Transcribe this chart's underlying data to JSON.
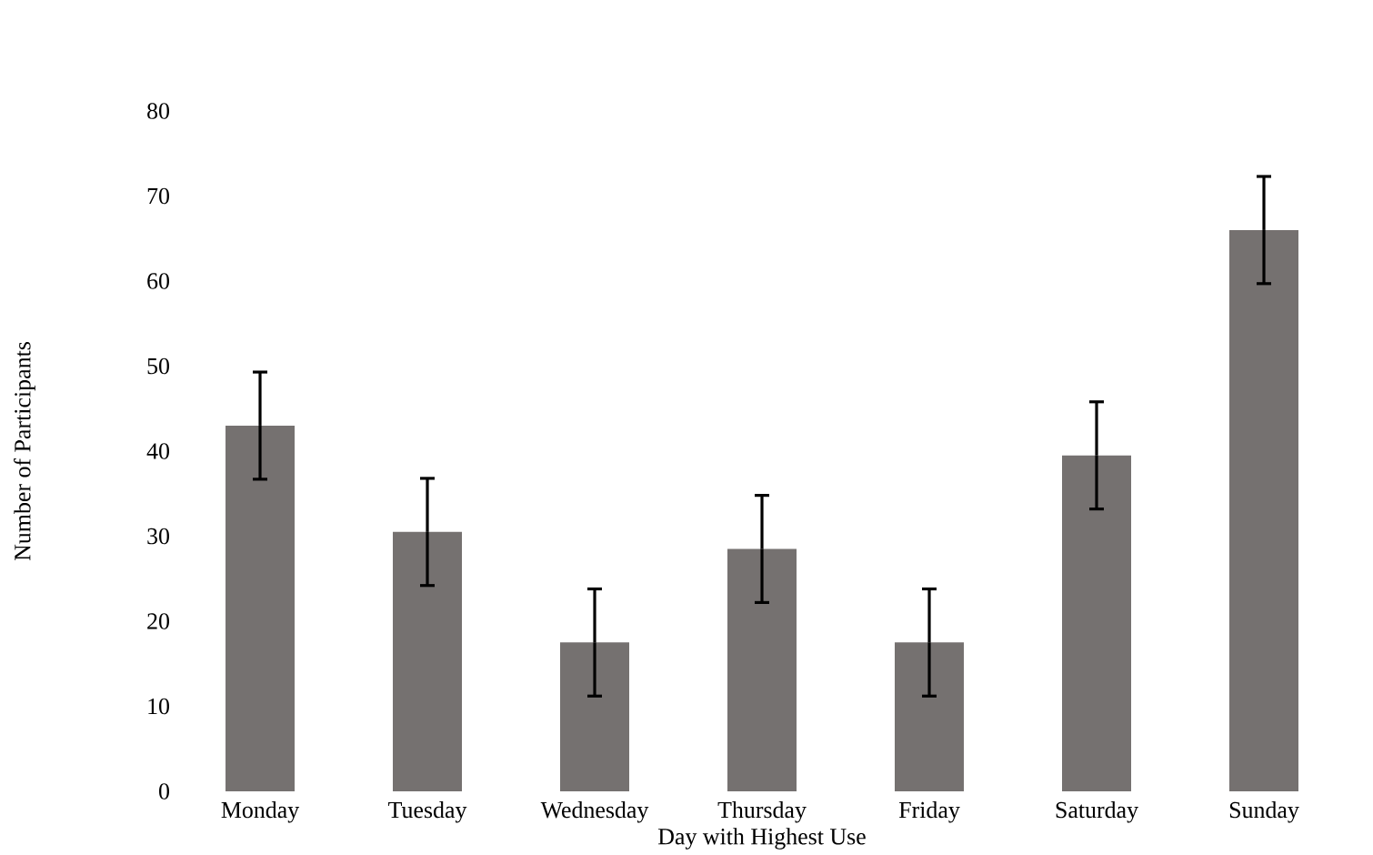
{
  "chart_data": {
    "type": "bar",
    "xlabel": "Day with Highest Use",
    "ylabel": "Number of Participants",
    "categories": [
      "Monday",
      "Tuesday",
      "Wednesday",
      "Thursday",
      "Friday",
      "Saturday",
      "Sunday"
    ],
    "values": [
      43,
      30.5,
      17.5,
      28.5,
      17.5,
      39.5,
      66
    ],
    "errors": [
      6.3,
      6.3,
      6.3,
      6.3,
      6.3,
      6.3,
      6.3
    ],
    "color": "#757170",
    "ylim": [
      0,
      80
    ],
    "yticks": [
      0,
      10,
      20,
      30,
      40,
      50,
      60,
      70,
      80
    ],
    "grid": false
  }
}
